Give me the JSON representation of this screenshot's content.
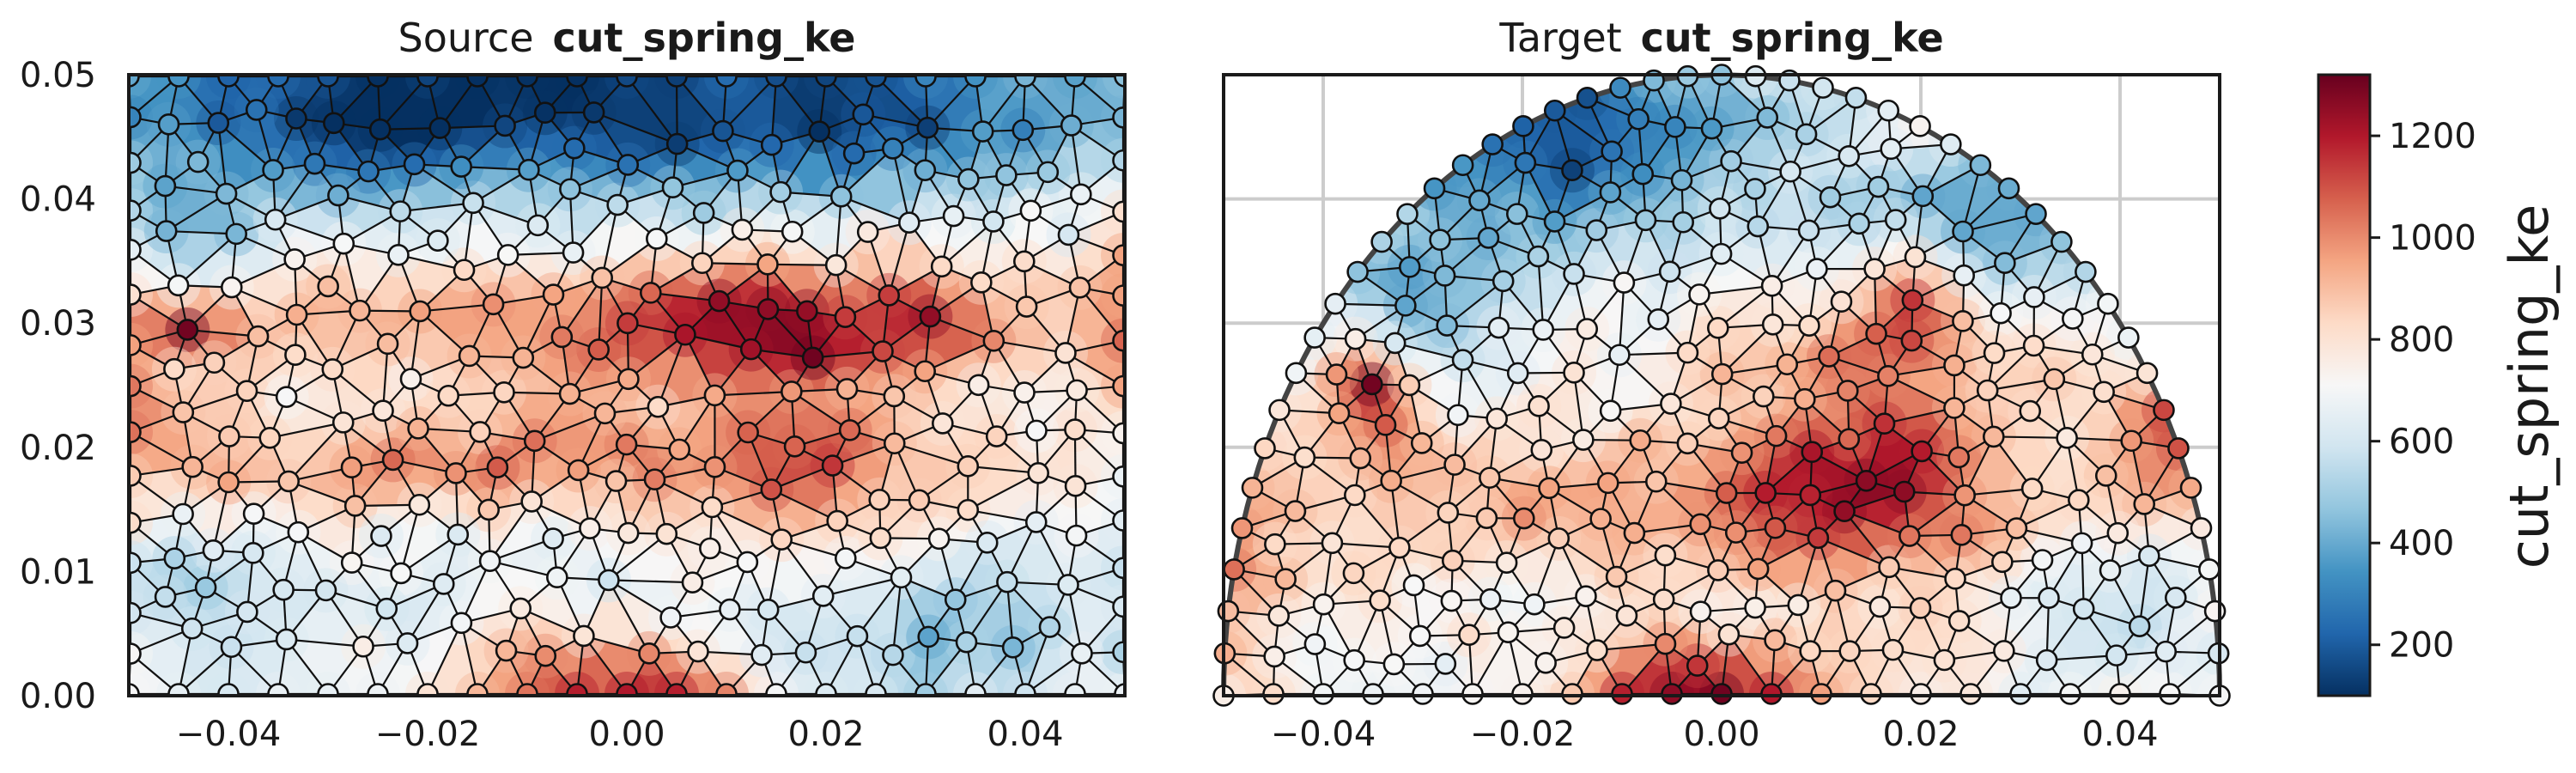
{
  "chart_data": [
    {
      "type": "mesh-scatter",
      "title_prefix": "Source",
      "title_variable": "cut_spring_ke",
      "x_ticks": [
        "−0.04",
        "−0.02",
        "0.00",
        "0.02",
        "0.04"
      ],
      "x_tick_values": [
        -0.04,
        -0.02,
        0.0,
        0.02,
        0.04
      ],
      "y_ticks": [
        "0.00",
        "0.01",
        "0.02",
        "0.03",
        "0.04",
        "0.05"
      ],
      "y_tick_values": [
        0.0,
        0.01,
        0.02,
        0.03,
        0.04,
        0.05
      ],
      "xlim": [
        -0.05,
        0.05
      ],
      "ylim": [
        0.0,
        0.05
      ],
      "domain_shape": "rectangle",
      "grid": false,
      "highlights": [
        {
          "x": -0.044,
          "y": 0.03,
          "value": 1300
        },
        {
          "x": 0.032,
          "y": 0.03,
          "value": 1250
        },
        {
          "x": -0.032,
          "y": 0.046,
          "value": 120
        },
        {
          "x": 0.0,
          "y": 0.046,
          "value": 120
        }
      ]
    },
    {
      "type": "mesh-scatter",
      "title_prefix": "Target",
      "title_variable": "cut_spring_ke",
      "x_ticks": [
        "−0.04",
        "−0.02",
        "0.00",
        "0.02",
        "0.04"
      ],
      "x_tick_values": [
        -0.04,
        -0.02,
        0.0,
        0.02,
        0.04
      ],
      "xlim": [
        -0.05,
        0.05
      ],
      "ylim": [
        0.0,
        0.05
      ],
      "domain_shape": "half-disk",
      "domain_radius": 0.05,
      "grid": true,
      "highlights": [
        {
          "x": -0.035,
          "y": 0.0235,
          "value": 1300
        },
        {
          "x": 0.019,
          "y": 0.033,
          "value": 1150
        },
        {
          "x": 0.045,
          "y": 0.021,
          "value": 1100
        }
      ]
    }
  ],
  "colorbar": {
    "label": "cut_spring_ke",
    "colormap": "RdBu_r",
    "vmin": 100,
    "vmax": 1320,
    "ticks": [
      "200",
      "400",
      "600",
      "800",
      "1000",
      "1200"
    ],
    "tick_values": [
      200,
      400,
      600,
      800,
      1000,
      1200
    ]
  }
}
